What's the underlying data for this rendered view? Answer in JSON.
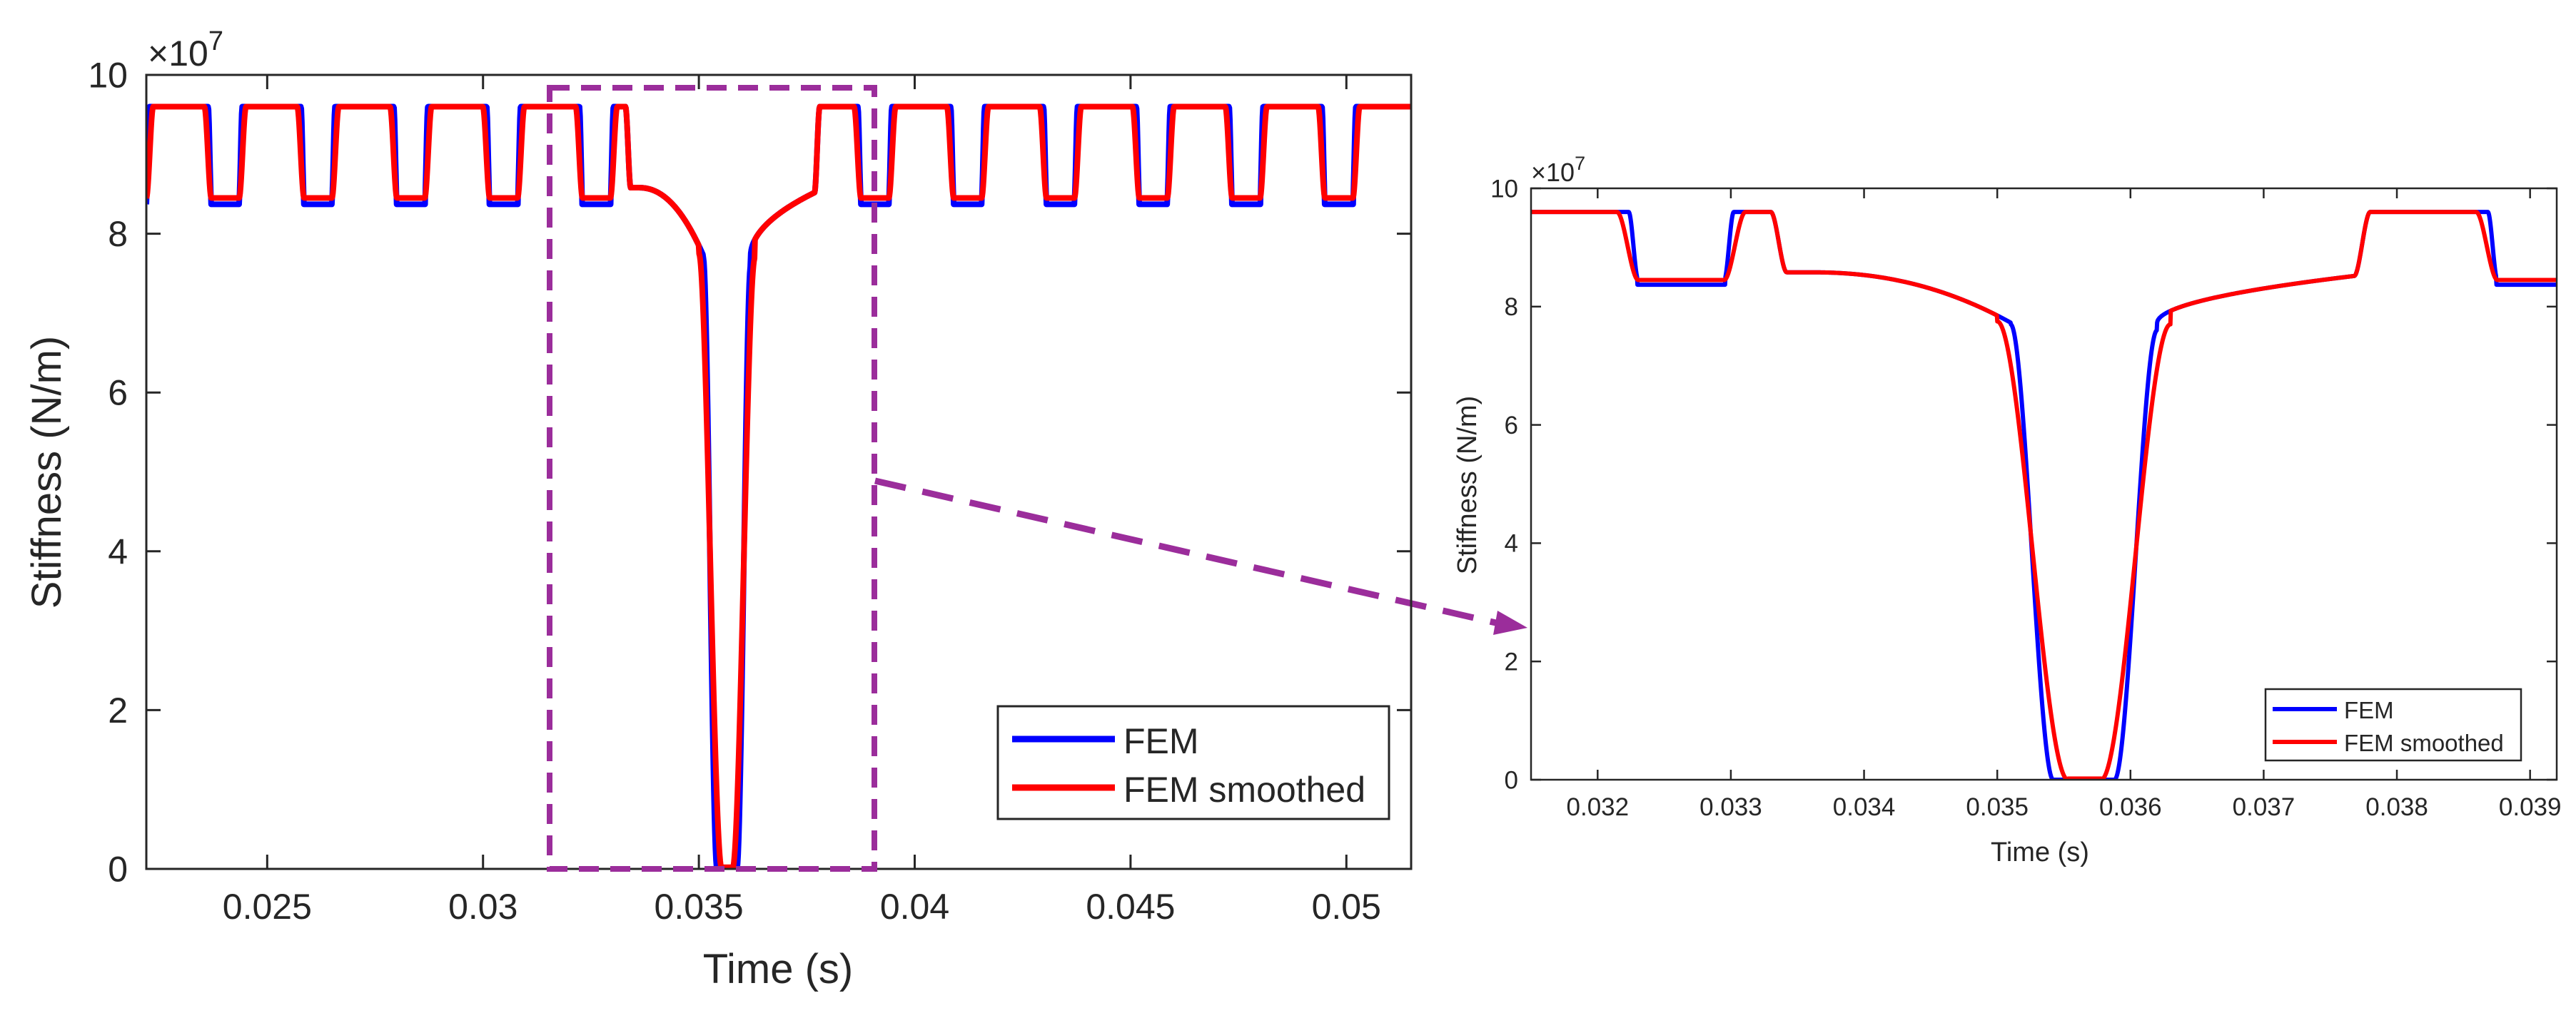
{
  "colors": {
    "fem": "#0000ff",
    "fem_smoothed": "#ff0000",
    "zoom_box": "#9b2d9b",
    "axis": "#262626"
  },
  "chart_data": [
    {
      "type": "line",
      "name": "full-view",
      "title": "",
      "xlabel": "Time (s)",
      "ylabel": "Stiffness (N/m)",
      "y_exponent_label": "×10",
      "y_exponent": "7",
      "xlim": [
        0.0222,
        0.0515
      ],
      "ylim": [
        0,
        10
      ],
      "xticks": [
        0.025,
        0.03,
        0.035,
        0.04,
        0.045,
        0.05
      ],
      "xtick_labels": [
        "0.025",
        "0.03",
        "0.035",
        "0.04",
        "0.045",
        "0.05"
      ],
      "yticks": [
        0,
        2,
        4,
        6,
        8,
        10
      ],
      "ytick_labels": [
        "0",
        "2",
        "4",
        "6",
        "8",
        "10"
      ],
      "grid": false,
      "legend_position": "bottom-right",
      "series": [
        {
          "name": "FEM",
          "role": "fem"
        },
        {
          "name": "FEM smoothed",
          "role": "fem_smoothed"
        }
      ],
      "zoom_region": {
        "x": [
          0.0316,
          0.039
        ],
        "y": [
          0,
          9.85
        ]
      }
    },
    {
      "type": "line",
      "name": "zoom-view",
      "title": "",
      "xlabel": "Time (s)",
      "ylabel": "Stiffness (N/m)",
      "y_exponent_label": "×10",
      "y_exponent": "7",
      "xlim": [
        0.0315,
        0.0392
      ],
      "ylim": [
        0,
        10
      ],
      "xticks": [
        0.032,
        0.033,
        0.034,
        0.035,
        0.036,
        0.037,
        0.038,
        0.039
      ],
      "xtick_labels": [
        "0.032",
        "0.033",
        "0.034",
        "0.035",
        "0.036",
        "0.037",
        "0.038",
        "0.039"
      ],
      "yticks": [
        0,
        2,
        4,
        6,
        8,
        10
      ],
      "ytick_labels": [
        "0",
        "2",
        "4",
        "6",
        "8",
        "10"
      ],
      "grid": false,
      "legend_position": "bottom-right",
      "series": [
        {
          "name": "FEM",
          "role": "fem"
        },
        {
          "name": "FEM smoothed",
          "role": "fem_smoothed"
        }
      ]
    }
  ]
}
